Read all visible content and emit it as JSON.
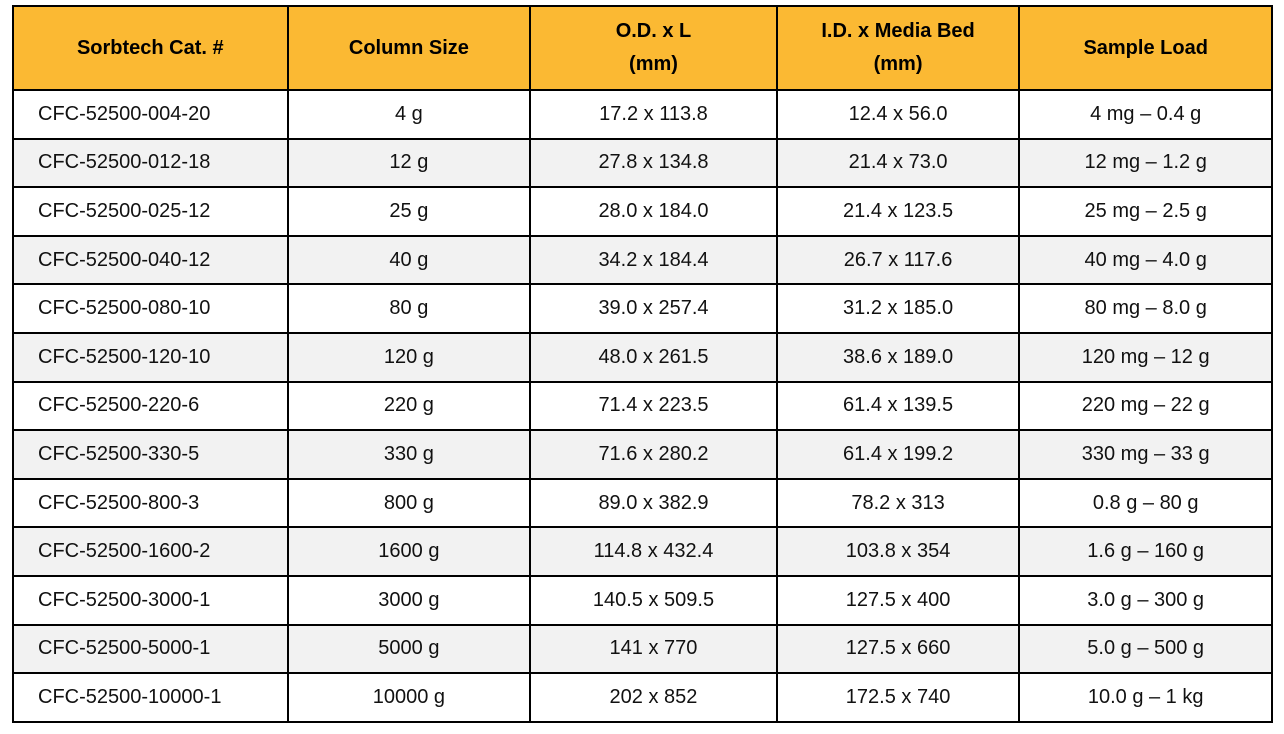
{
  "table": {
    "header": [
      [
        "Sorbtech Cat. #"
      ],
      [
        "Column Size"
      ],
      [
        "O.D. x L",
        "(mm)"
      ],
      [
        "I.D. x Media Bed",
        "(mm)"
      ],
      [
        "Sample Load"
      ]
    ],
    "rows": [
      [
        "CFC-52500-004-20",
        "4 g",
        "17.2 x 113.8",
        "12.4 x 56.0",
        "4 mg – 0.4 g"
      ],
      [
        "CFC-52500-012-18",
        "12 g",
        "27.8 x 134.8",
        "21.4 x 73.0",
        "12 mg – 1.2 g"
      ],
      [
        "CFC-52500-025-12",
        "25 g",
        "28.0 x 184.0",
        "21.4 x 123.5",
        "25 mg – 2.5 g"
      ],
      [
        "CFC-52500-040-12",
        "40 g",
        "34.2 x 184.4",
        "26.7 x 117.6",
        "40 mg – 4.0 g"
      ],
      [
        "CFC-52500-080-10",
        "80 g",
        "39.0 x 257.4",
        "31.2 x 185.0",
        "80 mg – 8.0 g"
      ],
      [
        "CFC-52500-120-10",
        "120 g",
        "48.0 x 261.5",
        "38.6 x 189.0",
        "120 mg – 12 g"
      ],
      [
        "CFC-52500-220-6",
        "220 g",
        "71.4 x 223.5",
        "61.4 x 139.5",
        "220 mg – 22 g"
      ],
      [
        "CFC-52500-330-5",
        "330 g",
        "71.6 x 280.2",
        "61.4 x 199.2",
        "330 mg – 33 g"
      ],
      [
        "CFC-52500-800-3",
        "800 g",
        "89.0 x 382.9",
        "78.2 x 313",
        "0.8 g – 80 g"
      ],
      [
        "CFC-52500-1600-2",
        "1600 g",
        "114.8 x 432.4",
        "103.8 x 354",
        "1.6 g – 160 g"
      ],
      [
        "CFC-52500-3000-1",
        "3000 g",
        "140.5 x 509.5",
        "127.5 x 400",
        "3.0 g – 300 g"
      ],
      [
        "CFC-52500-5000-1",
        "5000 g",
        "141 x 770",
        "127.5 x 660",
        "5.0 g – 500 g"
      ],
      [
        "CFC-52500-10000-1",
        "10000 g",
        "202 x 852",
        "172.5 x 740",
        "10.0 g – 1 kg"
      ]
    ]
  }
}
